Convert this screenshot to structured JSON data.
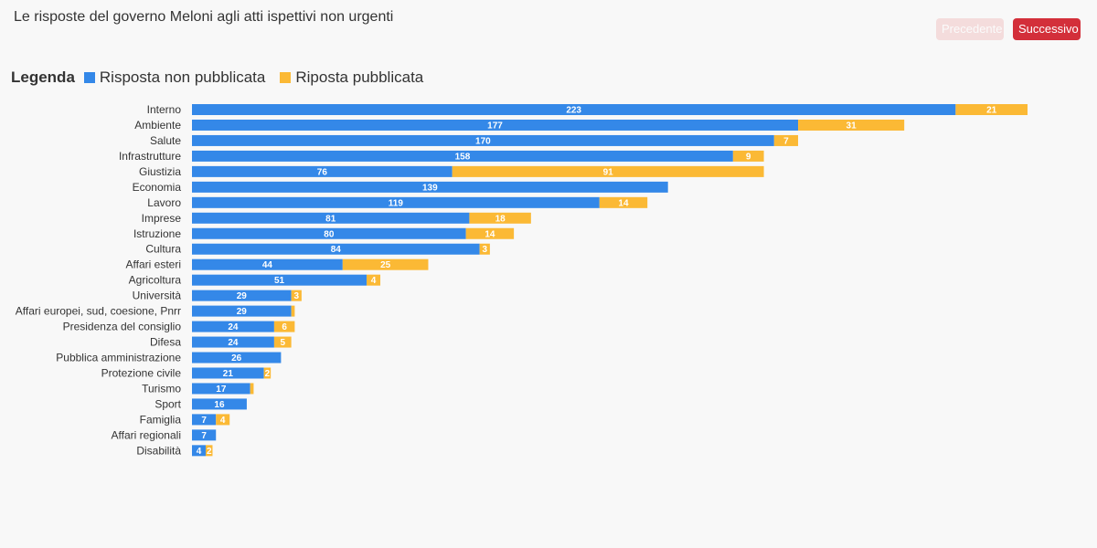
{
  "header": {
    "title": "Le risposte del governo Meloni agli atti ispettivi non urgenti",
    "prev_label": "Precedente",
    "next_label": "Successivo"
  },
  "legend": {
    "title": "Legenda",
    "items": [
      "Risposta non pubblicata",
      "Riposta pubblicata"
    ]
  },
  "colors": {
    "blue": "#3488e8",
    "orange": "#fbb935",
    "prev_button": "#f4dcdc",
    "next_button": "#d32f3a"
  },
  "chart_data": {
    "type": "bar",
    "orientation": "horizontal",
    "stacked": true,
    "categories": [
      "Interno",
      "Ambiente",
      "Salute",
      "Infrastrutture",
      "Giustizia",
      "Economia",
      "Lavoro",
      "Imprese",
      "Istruzione",
      "Cultura",
      "Affari esteri",
      "Agricoltura",
      "Università",
      "Affari europei, sud, coesione, Pnrr",
      "Presidenza del consiglio",
      "Difesa",
      "Pubblica amministrazione",
      "Protezione civile",
      "Turismo",
      "Sport",
      "Famiglia",
      "Affari regionali",
      "Disabilità"
    ],
    "series": [
      {
        "name": "Risposta non pubblicata",
        "values": [
          223,
          177,
          170,
          158,
          76,
          139,
          119,
          81,
          80,
          84,
          44,
          51,
          29,
          29,
          24,
          24,
          26,
          21,
          17,
          16,
          7,
          7,
          4
        ]
      },
      {
        "name": "Riposta pubblicata",
        "values": [
          21,
          31,
          7,
          9,
          91,
          null,
          14,
          18,
          14,
          3,
          25,
          4,
          3,
          1,
          6,
          5,
          null,
          2,
          1,
          null,
          4,
          null,
          2
        ]
      }
    ],
    "hidden_labels": [
      [],
      [
        13,
        18
      ]
    ],
    "xlim": [
      0,
      244
    ],
    "grid": false,
    "legend_position": "top-left"
  }
}
